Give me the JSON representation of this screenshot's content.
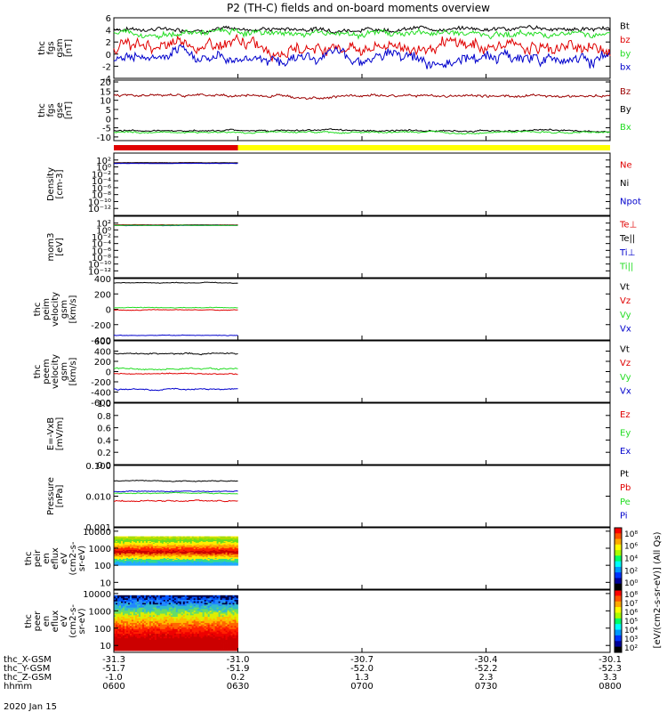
{
  "title": "P2 (TH-C) fields and on-board moments overview",
  "date_label": "2020 Jan 15",
  "colors": {
    "black": "#000000",
    "red": "#e00000",
    "green": "#22dd22",
    "blue": "#0000cc",
    "darkred": "#9b0000",
    "yellow": "#ffff00"
  },
  "chart_data": [
    {
      "id": "fgs",
      "type": "line",
      "ylabel": [
        "thc",
        "fgs",
        "gsm",
        "[nT]"
      ],
      "ylim": [
        -4,
        6
      ],
      "ticks": [
        "6",
        "4",
        "2",
        "0",
        "-2",
        "-4"
      ],
      "tick_values": [
        6,
        4,
        2,
        0,
        -2,
        -4
      ],
      "series": [
        {
          "name": "Bt",
          "color": "#000000",
          "mean": 4.2,
          "noise": 0.5,
          "end_frac": 1.0
        },
        {
          "name": "bz",
          "color": "#e00000",
          "mean": 1.2,
          "noise": 1.4,
          "end_frac": 1.0
        },
        {
          "name": "by",
          "color": "#22dd22",
          "mean": 3.5,
          "noise": 0.7,
          "end_frac": 1.0
        },
        {
          "name": "bx",
          "color": "#0000cc",
          "mean": -0.5,
          "noise": 1.3,
          "end_frac": 1.0
        }
      ]
    },
    {
      "id": "fgs_gse",
      "type": "line",
      "ylabel": [
        "thc",
        "fgs",
        "gse",
        "[nT]"
      ],
      "ylim": [
        -12,
        21
      ],
      "ticks": [
        "20",
        "15",
        "10",
        "5",
        "0",
        "-5",
        "-10"
      ],
      "tick_values": [
        20,
        15,
        10,
        5,
        0,
        -5,
        -10
      ],
      "series": [
        {
          "name": "Bz",
          "color": "#9b0000",
          "mean": 12.5,
          "noise": 1.0,
          "end_frac": 1.0
        },
        {
          "name": "By",
          "color": "#000000",
          "mean": -6.5,
          "noise": 0.6,
          "end_frac": 1.0
        },
        {
          "name": "Bx",
          "color": "#22dd22",
          "mean": -7.5,
          "noise": 0.6,
          "end_frac": 1.0
        }
      ]
    },
    {
      "id": "density",
      "type": "line",
      "ylabel": [
        "Density",
        "[cm-3]"
      ],
      "ylog": true,
      "ylim": [
        -14,
        4
      ],
      "ticks": [
        "10²",
        "10⁰",
        "10⁻²",
        "10⁻⁴",
        "10⁻⁶",
        "10⁻⁸",
        "10⁻¹⁰",
        "10⁻¹²"
      ],
      "tick_values": [
        2,
        0,
        -2,
        -4,
        -6,
        -8,
        -10,
        -12
      ],
      "series": [
        {
          "name": "Ne",
          "color": "#e00000",
          "mean": 1.2,
          "noise": 0.05,
          "end_frac": 0.25
        },
        {
          "name": "Ni",
          "color": "#000000",
          "mean": 1.2,
          "noise": 0.05,
          "end_frac": 0.25
        },
        {
          "name": "Npot",
          "color": "#0000cc",
          "mean": 1.0,
          "noise": 0.05,
          "end_frac": 0.25
        }
      ]
    },
    {
      "id": "temp",
      "type": "line",
      "ylabel": [
        "mom3",
        "[eV]"
      ],
      "ylog": true,
      "ylim": [
        -14,
        4
      ],
      "ticks": [
        "10²",
        "10⁰",
        "10⁻²",
        "10⁻⁴",
        "10⁻⁶",
        "10⁻⁸",
        "10⁻¹⁰",
        "10⁻¹²"
      ],
      "tick_values": [
        2,
        0,
        -2,
        -4,
        -6,
        -8,
        -10,
        -12
      ],
      "series": [
        {
          "name": "Te⊥",
          "color": "#e00000",
          "mean": 1.5,
          "noise": 0.05,
          "end_frac": 0.25
        },
        {
          "name": "Te||",
          "color": "#000000",
          "mean": 1.4,
          "noise": 0.05,
          "end_frac": 0.25
        },
        {
          "name": "Ti⊥",
          "color": "#0000cc",
          "mean": 1.3,
          "noise": 0.05,
          "end_frac": 0.25
        },
        {
          "name": "Ti||",
          "color": "#22dd22",
          "mean": 1.35,
          "noise": 0.05,
          "end_frac": 0.25
        }
      ]
    },
    {
      "id": "peim",
      "type": "line",
      "ylabel": [
        "thc",
        "peim",
        "velocity",
        "gsm",
        "[km/s]"
      ],
      "ylim": [
        -400,
        400
      ],
      "ticks": [
        "400",
        "200",
        "0",
        "-200",
        "-400"
      ],
      "tick_values": [
        400,
        200,
        0,
        -200,
        -400
      ],
      "series": [
        {
          "name": "Vt",
          "color": "#000000",
          "mean": 345,
          "noise": 6,
          "end_frac": 0.25
        },
        {
          "name": "Vz",
          "color": "#e00000",
          "mean": -10,
          "noise": 6,
          "end_frac": 0.25
        },
        {
          "name": "Vy",
          "color": "#22dd22",
          "mean": 20,
          "noise": 6,
          "end_frac": 0.25
        },
        {
          "name": "Vx",
          "color": "#0000cc",
          "mean": -340,
          "noise": 6,
          "end_frac": 0.25
        }
      ]
    },
    {
      "id": "peem",
      "type": "line",
      "ylabel": [
        "thc",
        "peem",
        "velocity",
        "gsm",
        "[km/s]"
      ],
      "ylim": [
        -600,
        600
      ],
      "ticks": [
        "600",
        "400",
        "200",
        "0",
        "-200",
        "-400",
        "-600"
      ],
      "tick_values": [
        600,
        400,
        200,
        0,
        -200,
        -400,
        -600
      ],
      "series": [
        {
          "name": "Vt",
          "color": "#000000",
          "mean": 350,
          "noise": 20,
          "end_frac": 0.25
        },
        {
          "name": "Vz",
          "color": "#e00000",
          "mean": -40,
          "noise": 15,
          "end_frac": 0.25
        },
        {
          "name": "Vy",
          "color": "#22dd22",
          "mean": 60,
          "noise": 20,
          "end_frac": 0.25
        },
        {
          "name": "Vx",
          "color": "#0000cc",
          "mean": -340,
          "noise": 20,
          "end_frac": 0.25
        }
      ]
    },
    {
      "id": "efield",
      "type": "line",
      "ylabel": [
        "E=-VxB",
        "[mV/m]"
      ],
      "ylim": [
        0,
        1
      ],
      "ticks": [
        "1.0",
        "0.8",
        "0.6",
        "0.4",
        "0.2",
        "0.0"
      ],
      "tick_values": [
        1,
        0.8,
        0.6,
        0.4,
        0.2,
        0
      ],
      "series": [
        {
          "name": "Ez",
          "color": "#e00000",
          "mean": null,
          "noise": 0,
          "end_frac": 0
        },
        {
          "name": "Ey",
          "color": "#22dd22",
          "mean": null,
          "noise": 0,
          "end_frac": 0
        },
        {
          "name": "Ex",
          "color": "#0000cc",
          "mean": null,
          "noise": 0,
          "end_frac": 0
        }
      ]
    },
    {
      "id": "pressure",
      "type": "line",
      "ylabel": [
        "Pressure",
        "[nPa]"
      ],
      "ylog": true,
      "ylim": [
        -3,
        -1
      ],
      "ticks": [
        "0.100",
        "0.010",
        "0.001"
      ],
      "tick_values": [
        -1,
        -2,
        -3
      ],
      "series": [
        {
          "name": "Pt",
          "color": "#000000",
          "mean": -1.5,
          "noise": 0.02,
          "end_frac": 0.25
        },
        {
          "name": "Pb",
          "color": "#e00000",
          "mean": -2.15,
          "noise": 0.03,
          "end_frac": 0.25
        },
        {
          "name": "Pe",
          "color": "#22dd22",
          "mean": -1.9,
          "noise": 0.02,
          "end_frac": 0.25
        },
        {
          "name": "Pi",
          "color": "#0000cc",
          "mean": -1.85,
          "noise": 0.02,
          "end_frac": 0.25
        }
      ]
    },
    {
      "id": "peir",
      "type": "heatmap",
      "ylabel": [
        "thc",
        "peir",
        "en",
        "eflux",
        "eV",
        "(cm2-s-",
        "sr-eV)"
      ],
      "ylog": true,
      "ylim": [
        0.6,
        4.2
      ],
      "ticks": [
        "10000",
        "1000",
        "100",
        "10"
      ],
      "tick_values": [
        4,
        3,
        2,
        1
      ],
      "end_frac": 0.25,
      "band_top": 3.7,
      "band_bottom": 2.0
    },
    {
      "id": "peer",
      "type": "heatmap",
      "ylabel": [
        "thc",
        "peer",
        "en",
        "eflux",
        "eV",
        "(cm2-s-",
        "sr-eV)"
      ],
      "ylog": true,
      "ylim": [
        0.6,
        4.2
      ],
      "ticks": [
        "10000",
        "1000",
        "100",
        "10"
      ],
      "tick_values": [
        4,
        3,
        2,
        1
      ],
      "end_frac": 0.25,
      "band_top": 3.9,
      "band_bottom": 0.7
    }
  ],
  "colorbar": {
    "label": "[eV/(cm2-s-sr-eV)] (All Qs)",
    "ticks_top": [
      "10⁸",
      "10⁶",
      "10⁴",
      "10²",
      "10⁰"
    ],
    "ticks_bottom": [
      "10⁸",
      "10⁷",
      "10⁶",
      "10⁵",
      "10⁴",
      "10³",
      "10²"
    ]
  },
  "xaxis": {
    "rows": [
      {
        "label": "thc_X-GSM",
        "values": [
          "-31.3",
          "-31.0",
          "-30.7",
          "-30.4",
          "-30.1"
        ]
      },
      {
        "label": "thc_Y-GSM",
        "values": [
          "-51.7",
          "-51.9",
          "-52.0",
          "-52.2",
          "-52.3"
        ]
      },
      {
        "label": "thc_Z-GSM",
        "values": [
          "-1.0",
          "0.2",
          "1.3",
          "2.3",
          "3.3"
        ]
      },
      {
        "label": "hhmm",
        "values": [
          "0600",
          "0630",
          "0700",
          "0730",
          "0800"
        ]
      }
    ]
  },
  "mode_bar": {
    "segments": [
      {
        "color": "#e00000",
        "frac": 0.25
      },
      {
        "color": "#ffff00",
        "frac": 0.75
      }
    ]
  }
}
